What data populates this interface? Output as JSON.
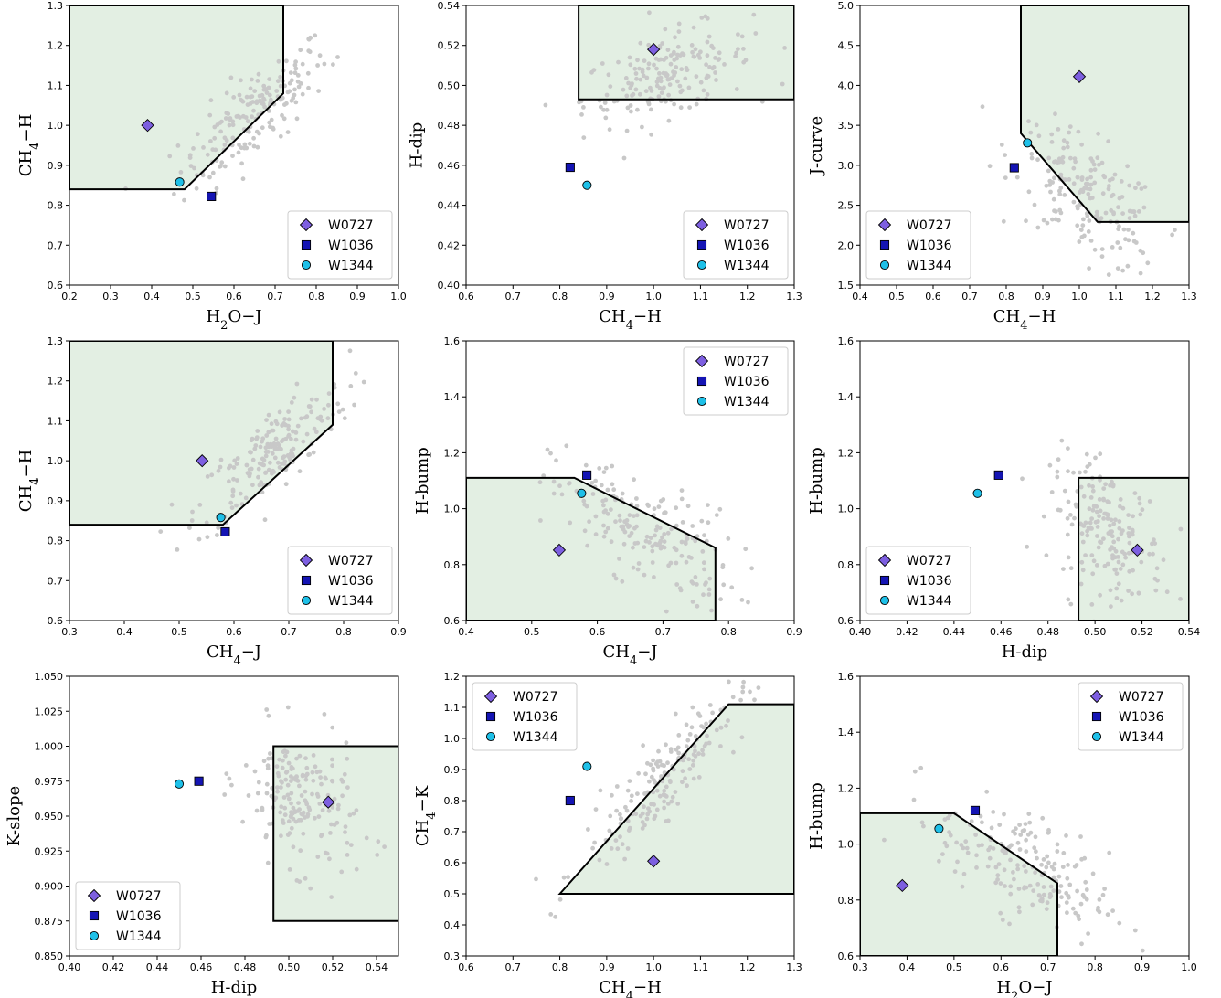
{
  "colors": {
    "background_points": "#c8c8c8",
    "region_fill": "#e3efe3",
    "region_edge": "#000000",
    "W0727": "#7d5fe0",
    "W1036": "#1414b4",
    "W1344": "#1ec0e8"
  },
  "legend_entries": [
    {
      "name": "W0727",
      "marker": "diamond",
      "color": "#7d5fe0"
    },
    {
      "name": "W1036",
      "marker": "square",
      "color": "#1414b4"
    },
    {
      "name": "W1344",
      "marker": "circle",
      "color": "#1ec0e8"
    }
  ],
  "chart_data": [
    {
      "type": "scatter",
      "xlabel": "H2O−J",
      "ylabel": "CH4−H",
      "xlim": [
        0.2,
        1.0
      ],
      "ylim": [
        0.6,
        1.3
      ],
      "xticks": [
        "0.2",
        "0.3",
        "0.4",
        "0.5",
        "0.6",
        "0.7",
        "0.8",
        "0.9",
        "1.0"
      ],
      "yticks": [
        "0.6",
        "0.7",
        "0.8",
        "0.9",
        "1.0",
        "1.1",
        "1.2",
        "1.3"
      ],
      "legend": "lower right",
      "region": [
        [
          0.2,
          1.3
        ],
        [
          0.72,
          1.3
        ],
        [
          0.72,
          1.08
        ],
        [
          0.48,
          0.84
        ],
        [
          0.2,
          0.84
        ]
      ],
      "bg": {
        "xc": 0.65,
        "yc": 1.03,
        "xs": 0.09,
        "ys": 0.09,
        "corr": 0.8,
        "n": 190
      },
      "objects": [
        {
          "name": "W0727",
          "x": 0.39,
          "y": 1.0
        },
        {
          "name": "W1036",
          "x": 0.545,
          "y": 0.822
        },
        {
          "name": "W1344",
          "x": 0.468,
          "y": 0.858
        }
      ]
    },
    {
      "type": "scatter",
      "xlabel": "CH4−H",
      "ylabel": "H-dip",
      "xlim": [
        0.6,
        1.3
      ],
      "ylim": [
        0.4,
        0.54
      ],
      "xticks": [
        "0.6",
        "0.7",
        "0.8",
        "0.9",
        "1.0",
        "1.1",
        "1.2",
        "1.3"
      ],
      "yticks": [
        "0.40",
        "0.42",
        "0.44",
        "0.46",
        "0.48",
        "0.50",
        "0.52",
        "0.54"
      ],
      "legend": "lower right",
      "region": [
        [
          0.84,
          0.54
        ],
        [
          1.3,
          0.54
        ],
        [
          1.3,
          0.493
        ],
        [
          0.84,
          0.493
        ]
      ],
      "bg": {
        "xc": 1.03,
        "yc": 0.505,
        "xs": 0.09,
        "ys": 0.012,
        "corr": 0.5,
        "n": 190
      },
      "objects": [
        {
          "name": "W0727",
          "x": 1.0,
          "y": 0.518
        },
        {
          "name": "W1036",
          "x": 0.822,
          "y": 0.459
        },
        {
          "name": "W1344",
          "x": 0.858,
          "y": 0.45
        }
      ]
    },
    {
      "type": "scatter",
      "xlabel": "CH4−H",
      "ylabel": "J-curve",
      "xlim": [
        0.4,
        1.3
      ],
      "ylim": [
        1.5,
        5.0
      ],
      "xticks": [
        "0.4",
        "0.5",
        "0.6",
        "0.7",
        "0.8",
        "0.9",
        "1.0",
        "1.1",
        "1.2",
        "1.3"
      ],
      "yticks": [
        "1.5",
        "2.0",
        "2.5",
        "3.0",
        "3.5",
        "4.0",
        "4.5",
        "5.0"
      ],
      "legend": "lower left",
      "region": [
        [
          0.84,
          5.0
        ],
        [
          1.3,
          5.0
        ],
        [
          1.3,
          2.29
        ],
        [
          1.05,
          2.29
        ],
        [
          0.84,
          3.4
        ]
      ],
      "bg": {
        "xc": 1.02,
        "yc": 2.6,
        "xs": 0.1,
        "ys": 0.45,
        "corr": -0.6,
        "n": 190
      },
      "objects": [
        {
          "name": "W0727",
          "x": 1.0,
          "y": 4.11
        },
        {
          "name": "W1036",
          "x": 0.822,
          "y": 2.97
        },
        {
          "name": "W1344",
          "x": 0.858,
          "y": 3.28
        }
      ]
    },
    {
      "type": "scatter",
      "xlabel": "CH4−J",
      "ylabel": "CH4−H",
      "xlim": [
        0.3,
        0.9
      ],
      "ylim": [
        0.6,
        1.3
      ],
      "xticks": [
        "0.3",
        "0.4",
        "0.5",
        "0.6",
        "0.7",
        "0.8",
        "0.9"
      ],
      "yticks": [
        "0.6",
        "0.7",
        "0.8",
        "0.9",
        "1.0",
        "1.1",
        "1.2",
        "1.3"
      ],
      "legend": "lower right",
      "region": [
        [
          0.3,
          1.3
        ],
        [
          0.78,
          1.3
        ],
        [
          0.78,
          1.09
        ],
        [
          0.58,
          0.84
        ],
        [
          0.3,
          0.84
        ]
      ],
      "bg": {
        "xc": 0.67,
        "yc": 1.02,
        "xs": 0.07,
        "ys": 0.09,
        "corr": 0.8,
        "n": 190
      },
      "objects": [
        {
          "name": "W0727",
          "x": 0.542,
          "y": 1.0
        },
        {
          "name": "W1036",
          "x": 0.584,
          "y": 0.822
        },
        {
          "name": "W1344",
          "x": 0.576,
          "y": 0.858
        }
      ]
    },
    {
      "type": "scatter",
      "xlabel": "CH4−J",
      "ylabel": "H-bump",
      "xlim": [
        0.4,
        0.9
      ],
      "ylim": [
        0.6,
        1.6
      ],
      "xticks": [
        "0.4",
        "0.5",
        "0.6",
        "0.7",
        "0.8",
        "0.9"
      ],
      "yticks": [
        "0.6",
        "0.8",
        "1.0",
        "1.2",
        "1.4",
        "1.6"
      ],
      "legend": "upper right",
      "region": [
        [
          0.4,
          1.11
        ],
        [
          0.565,
          1.11
        ],
        [
          0.78,
          0.86
        ],
        [
          0.78,
          0.6
        ],
        [
          0.4,
          0.6
        ]
      ],
      "bg": {
        "xc": 0.67,
        "yc": 0.92,
        "xs": 0.07,
        "ys": 0.12,
        "corr": -0.6,
        "n": 190
      },
      "objects": [
        {
          "name": "W0727",
          "x": 0.542,
          "y": 0.852
        },
        {
          "name": "W1036",
          "x": 0.584,
          "y": 1.12
        },
        {
          "name": "W1344",
          "x": 0.576,
          "y": 1.055
        }
      ]
    },
    {
      "type": "scatter",
      "xlabel": "H-dip",
      "ylabel": "H-bump",
      "xlim": [
        0.4,
        0.54
      ],
      "ylim": [
        0.6,
        1.6
      ],
      "xticks": [
        "0.40",
        "0.42",
        "0.44",
        "0.46",
        "0.48",
        "0.50",
        "0.52",
        "0.54"
      ],
      "yticks": [
        "0.6",
        "0.8",
        "1.0",
        "1.2",
        "1.4",
        "1.6"
      ],
      "legend": "lower left",
      "region": [
        [
          0.493,
          1.11
        ],
        [
          0.54,
          1.11
        ],
        [
          0.54,
          0.6
        ],
        [
          0.493,
          0.6
        ]
      ],
      "bg": {
        "xc": 0.505,
        "yc": 0.92,
        "xs": 0.012,
        "ys": 0.12,
        "corr": -0.4,
        "n": 190
      },
      "objects": [
        {
          "name": "W0727",
          "x": 0.518,
          "y": 0.852
        },
        {
          "name": "W1036",
          "x": 0.459,
          "y": 1.12
        },
        {
          "name": "W1344",
          "x": 0.45,
          "y": 1.055
        }
      ]
    },
    {
      "type": "scatter",
      "xlabel": "H-dip",
      "ylabel": "K-slope",
      "xlim": [
        0.4,
        0.55
      ],
      "ylim": [
        0.85,
        1.05
      ],
      "xticks": [
        "0.40",
        "0.42",
        "0.44",
        "0.46",
        "0.48",
        "0.50",
        "0.52",
        "0.54"
      ],
      "yticks": [
        "0.850",
        "0.875",
        "0.900",
        "0.925",
        "0.950",
        "0.975",
        "1.000",
        "1.025",
        "1.050"
      ],
      "legend": "lower left",
      "region": [
        [
          0.493,
          1.0
        ],
        [
          0.55,
          1.0
        ],
        [
          0.55,
          0.875
        ],
        [
          0.493,
          0.875
        ]
      ],
      "bg": {
        "xc": 0.505,
        "yc": 0.96,
        "xs": 0.013,
        "ys": 0.025,
        "corr": -0.3,
        "n": 190
      },
      "objects": [
        {
          "name": "W0727",
          "x": 0.518,
          "y": 0.96
        },
        {
          "name": "W1036",
          "x": 0.459,
          "y": 0.975
        },
        {
          "name": "W1344",
          "x": 0.45,
          "y": 0.973
        }
      ]
    },
    {
      "type": "scatter",
      "xlabel": "CH4−H",
      "ylabel": "CH4−K",
      "xlim": [
        0.6,
        1.3
      ],
      "ylim": [
        0.3,
        1.2
      ],
      "xticks": [
        "0.6",
        "0.7",
        "0.8",
        "0.9",
        "1.0",
        "1.1",
        "1.2",
        "1.3"
      ],
      "yticks": [
        "0.3",
        "0.4",
        "0.5",
        "0.6",
        "0.7",
        "0.8",
        "0.9",
        "1.0",
        "1.1",
        "1.2"
      ],
      "legend": "upper left",
      "region": [
        [
          0.8,
          0.5
        ],
        [
          1.16,
          1.11
        ],
        [
          1.3,
          1.11
        ],
        [
          1.3,
          0.5
        ]
      ],
      "bg": {
        "xc": 1.02,
        "yc": 0.87,
        "xs": 0.09,
        "ys": 0.15,
        "corr": 0.9,
        "n": 190
      },
      "objects": [
        {
          "name": "W0727",
          "x": 1.0,
          "y": 0.605
        },
        {
          "name": "W1036",
          "x": 0.822,
          "y": 0.8
        },
        {
          "name": "W1344",
          "x": 0.858,
          "y": 0.91
        }
      ]
    },
    {
      "type": "scatter",
      "xlabel": "H2O−J",
      "ylabel": "H-bump",
      "xlim": [
        0.3,
        1.0
      ],
      "ylim": [
        0.6,
        1.6
      ],
      "xticks": [
        "0.3",
        "0.4",
        "0.5",
        "0.6",
        "0.7",
        "0.8",
        "0.9",
        "1.0"
      ],
      "yticks": [
        "0.6",
        "0.8",
        "1.0",
        "1.2",
        "1.4",
        "1.6"
      ],
      "legend": "upper right",
      "region": [
        [
          0.3,
          1.11
        ],
        [
          0.5,
          1.11
        ],
        [
          0.72,
          0.86
        ],
        [
          0.72,
          0.6
        ],
        [
          0.3,
          0.6
        ]
      ],
      "bg": {
        "xc": 0.65,
        "yc": 0.92,
        "xs": 0.09,
        "ys": 0.12,
        "corr": -0.6,
        "n": 190
      },
      "objects": [
        {
          "name": "W0727",
          "x": 0.39,
          "y": 0.852
        },
        {
          "name": "W1036",
          "x": 0.545,
          "y": 1.12
        },
        {
          "name": "W1344",
          "x": 0.468,
          "y": 1.055
        }
      ]
    }
  ]
}
